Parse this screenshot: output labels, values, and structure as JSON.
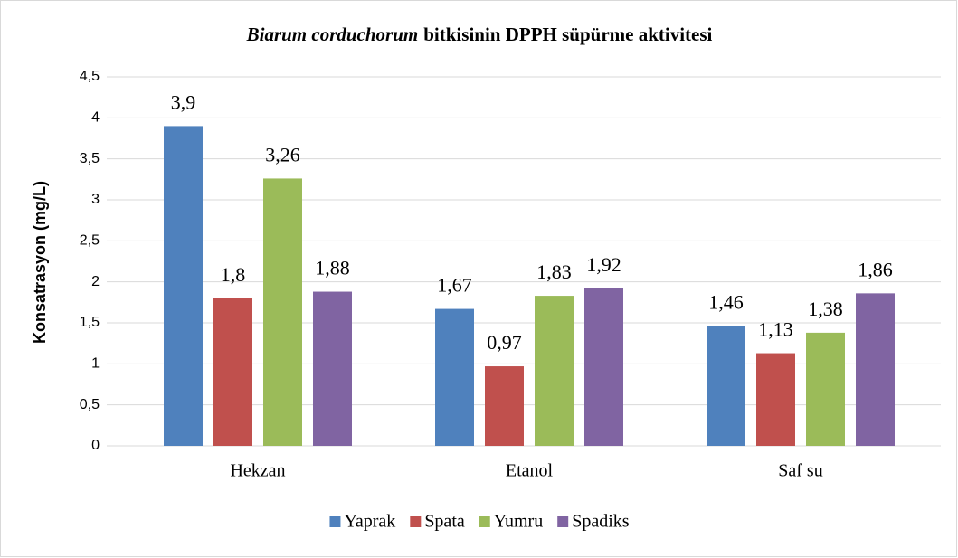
{
  "chart_data": {
    "type": "bar",
    "title_parts": [
      "Biarum corduchorum",
      "bitkisinin DPPH süpürme aktivitesi"
    ],
    "y_label": "Konsatrasyon (mg/L)",
    "categories": [
      "Hekzan",
      "Etanol",
      "Saf su"
    ],
    "series": [
      {
        "name": "Yaprak",
        "color": "#4f81bd",
        "values": [
          3.9,
          1.67,
          1.46
        ],
        "value_labels": [
          "3,9",
          "1,67",
          "1,46"
        ]
      },
      {
        "name": "Spata",
        "color": "#c0504d",
        "values": [
          1.8,
          0.97,
          1.13
        ],
        "value_labels": [
          "1,8",
          "0,97",
          "1,13"
        ]
      },
      {
        "name": "Yumru",
        "color": "#9bbb59",
        "values": [
          3.26,
          1.83,
          1.38
        ],
        "value_labels": [
          "3,26",
          "1,83",
          "1,38"
        ]
      },
      {
        "name": "Spadiks",
        "color": "#8064a2",
        "values": [
          1.88,
          1.92,
          1.86
        ],
        "value_labels": [
          "1,88",
          "1,92",
          "1,86"
        ]
      }
    ],
    "ylim": [
      0,
      4.5
    ],
    "yticks": [
      0,
      {
        "value": 0.5,
        "label": "0,5"
      },
      1,
      {
        "value": 1.5,
        "label": "1,5"
      },
      2,
      {
        "value": 2.5,
        "label": "2,5"
      },
      3,
      {
        "value": 3.5,
        "label": "3,5"
      },
      4,
      {
        "value": 4.5,
        "label": "4,5"
      }
    ],
    "grid": true,
    "legend": "bottom"
  }
}
